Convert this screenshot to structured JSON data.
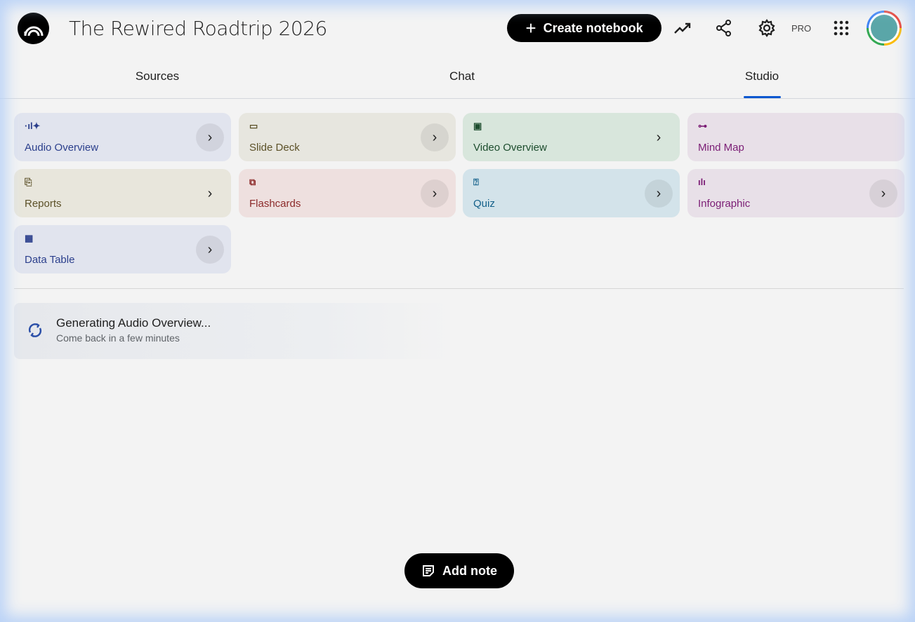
{
  "header": {
    "title": "The Rewired Roadtrip 2026",
    "create_label": "Create notebook",
    "pro_label": "PRO"
  },
  "tabs": [
    {
      "label": "Sources"
    },
    {
      "label": "Chat"
    },
    {
      "label": "Studio",
      "active": true
    }
  ],
  "studio": {
    "cards": [
      {
        "label": "Audio Overview",
        "icon": "audio-waveform-icon",
        "bg": "#e1e4ee",
        "color": "#2b3f8c"
      },
      {
        "label": "Slide Deck",
        "icon": "slides-icon",
        "bg": "#e7e6df",
        "color": "#5c5128"
      },
      {
        "label": "Video Overview",
        "icon": "video-icon",
        "bg": "#d8e6dc",
        "color": "#1d4d2e"
      },
      {
        "label": "Mind Map",
        "icon": "mind-map-icon",
        "bg": "#e8e0e8",
        "color": "#7b1d75"
      },
      {
        "label": "Reports",
        "icon": "reports-icon",
        "bg": "#e8e6dc",
        "color": "#5c5128"
      },
      {
        "label": "Flashcards",
        "icon": "flashcards-icon",
        "bg": "#eee0df",
        "color": "#8c2a2a"
      },
      {
        "label": "Quiz",
        "icon": "quiz-icon",
        "bg": "#d3e3ea",
        "color": "#14618a"
      },
      {
        "label": "Infographic",
        "icon": "infographic-icon",
        "bg": "#e8e0e8",
        "color": "#7b1d75"
      },
      {
        "label": "Data Table",
        "icon": "table-icon",
        "bg": "#e1e4ee",
        "color": "#2b3f8c"
      }
    ],
    "generating": {
      "title": "Generating Audio Overview...",
      "subtitle": "Come back in a few minutes"
    }
  },
  "add_note_label": "Add note",
  "accent": "#0b57d0"
}
